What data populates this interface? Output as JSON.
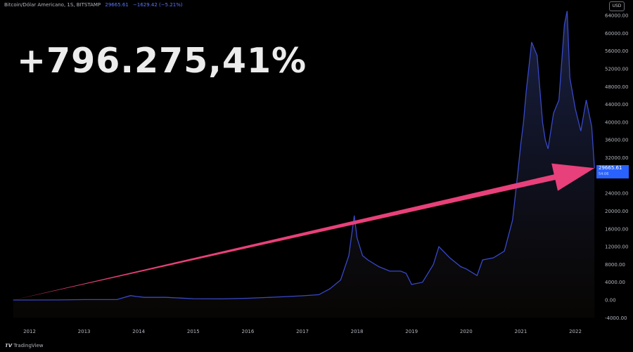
{
  "header": {
    "symbol": "Bitcoin/Dólar Americano, 1S, BITSTAMP",
    "price": "29665.61",
    "change": "−1629.42 (−5.21%)"
  },
  "headline": "+796.275,41%",
  "currency_badge": "USD",
  "price_tag": {
    "value": "29665.61",
    "sub": "54:06"
  },
  "footer_logo": "TradingView",
  "colors": {
    "line": "#3848c8",
    "arrow": "#e8407a",
    "background": "#000000"
  },
  "chart_data": {
    "type": "area",
    "title": "",
    "xlabel": "",
    "ylabel": "",
    "ylim": [
      -4000,
      64000
    ],
    "y_ticks": [
      "64000.00",
      "60000.00",
      "56000.00",
      "52000.00",
      "48000.00",
      "44000.00",
      "40000.00",
      "36000.00",
      "32000.00",
      "28000.00",
      "24000.00",
      "20000.00",
      "16000.00",
      "12000.00",
      "8000.00",
      "4000.00",
      "0.00",
      "-4000.00"
    ],
    "x_ticks": [
      "2012",
      "2013",
      "2014",
      "2015",
      "2016",
      "2017",
      "2018",
      "2019",
      "2020",
      "2021",
      "2022"
    ],
    "series": [
      {
        "x": [
          2011.7,
          2012.5,
          2013.0,
          2013.6,
          2013.85,
          2013.95,
          2014.1,
          2014.5,
          2015.0,
          2015.5,
          2016.0,
          2016.5,
          2017.0,
          2017.3,
          2017.5,
          2017.7,
          2017.85,
          2017.95,
          2018.0,
          2018.1,
          2018.2,
          2018.4,
          2018.6,
          2018.8,
          2018.9,
          2019.0,
          2019.2,
          2019.4,
          2019.5,
          2019.7,
          2019.9,
          2020.0,
          2020.2,
          2020.3,
          2020.5,
          2020.7,
          2020.85,
          2020.95,
          2021.0,
          2021.05,
          2021.1,
          2021.2,
          2021.3,
          2021.4,
          2021.45,
          2021.5,
          2021.6,
          2021.7,
          2021.8,
          2021.85,
          2021.9,
          2022.0,
          2022.1,
          2022.2,
          2022.3,
          2022.35
        ],
        "y": [
          5,
          10,
          100,
          100,
          1000,
          800,
          600,
          600,
          300,
          250,
          400,
          650,
          950,
          1200,
          2500,
          4500,
          10000,
          19000,
          14000,
          10000,
          9000,
          7500,
          6500,
          6500,
          6000,
          3500,
          4000,
          8000,
          12000,
          9500,
          7500,
          7000,
          5500,
          9000,
          9500,
          11000,
          18000,
          29000,
          35000,
          40000,
          47000,
          58000,
          55000,
          40000,
          36000,
          34000,
          42000,
          45000,
          62000,
          65000,
          50000,
          43000,
          38000,
          45000,
          39000,
          29665.61
        ]
      }
    ],
    "annotations": [
      "+796.275,41%"
    ]
  }
}
